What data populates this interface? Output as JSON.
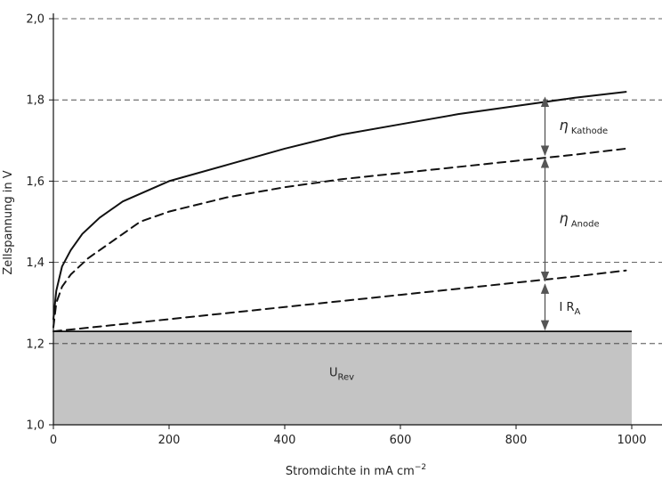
{
  "chart_data": {
    "type": "line",
    "xlabel": "Stromdichte in mA cm",
    "xlabel_sup": "−2",
    "ylabel": "Zellspannung in V",
    "xlim": [
      0,
      1000
    ],
    "ylim": [
      1.0,
      2.0
    ],
    "x_ticks": [
      "0",
      "200",
      "400",
      "600",
      "800",
      "1000"
    ],
    "y_ticks": [
      "1,0",
      "1,2",
      "1,4",
      "1,6",
      "1,8",
      "2,0"
    ],
    "grid": "horizontal-dashed",
    "reversible_voltage": 1.23,
    "series": [
      {
        "style": "solid",
        "x": [
          0,
          5,
          15,
          30,
          50,
          80,
          120,
          200,
          300,
          400,
          500,
          600,
          700,
          800,
          900,
          990
        ],
        "y": [
          1.26,
          1.33,
          1.39,
          1.43,
          1.47,
          1.51,
          1.55,
          1.6,
          1.64,
          1.68,
          1.715,
          1.74,
          1.765,
          1.785,
          1.805,
          1.82
        ]
      },
      {
        "style": "dashed",
        "x": [
          0,
          5,
          15,
          30,
          60,
          100,
          150,
          200,
          300,
          400,
          500,
          600,
          700,
          800,
          900,
          990
        ],
        "y": [
          1.24,
          1.3,
          1.34,
          1.37,
          1.41,
          1.45,
          1.5,
          1.525,
          1.56,
          1.585,
          1.605,
          1.62,
          1.635,
          1.65,
          1.665,
          1.68
        ]
      },
      {
        "style": "dashed",
        "x": [
          0,
          100,
          200,
          300,
          400,
          500,
          600,
          700,
          800,
          900,
          990
        ],
        "y": [
          1.23,
          1.245,
          1.26,
          1.275,
          1.29,
          1.305,
          1.32,
          1.335,
          1.35,
          1.365,
          1.38
        ]
      }
    ],
    "annotations": [
      {
        "label": "η",
        "sub": "Kathode",
        "y_from": 1.66,
        "y_to": 1.81,
        "x": 850
      },
      {
        "label": "η",
        "sub": "Anode",
        "y_from": 1.35,
        "y_to": 1.66,
        "x": 850
      },
      {
        "label": "I R",
        "sub": "A",
        "y_from": 1.23,
        "y_to": 1.35,
        "x": 850
      }
    ],
    "region_label": {
      "label": "U",
      "sub": "Rev"
    }
  }
}
